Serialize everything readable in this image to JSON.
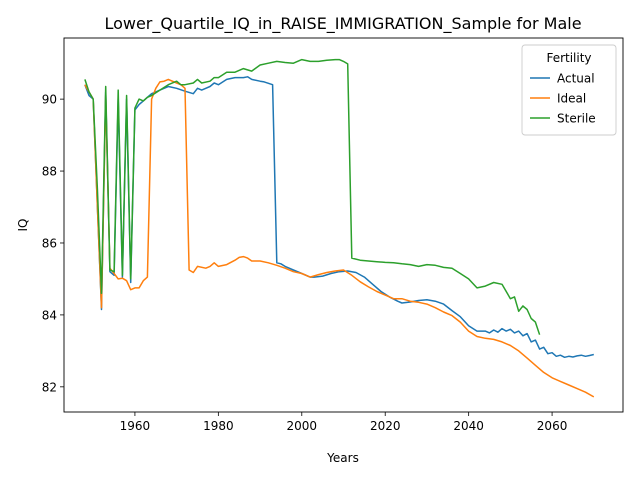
{
  "chart_data": {
    "type": "line",
    "title": "Lower_Quartile_IQ_in_RAISE_IMMIGRATION_Sample for Male",
    "xlabel": "Years",
    "ylabel": "IQ",
    "xlim": [
      1943,
      2077
    ],
    "ylim": [
      81.3,
      91.7
    ],
    "xticks": [
      1960,
      1980,
      2000,
      2020,
      2040,
      2060
    ],
    "yticks": [
      82,
      84,
      86,
      88,
      90
    ],
    "grid": false,
    "legend": {
      "title": "Fertility",
      "placement": "top-right"
    },
    "series": [
      {
        "name": "Actual",
        "color": "#1f77b4",
        "x": [
          1948,
          1949,
          1950,
          1951,
          1952,
          1953,
          1954,
          1955,
          1956,
          1957,
          1958,
          1959,
          1960,
          1961,
          1962,
          1963,
          1964,
          1965,
          1966,
          1967,
          1968,
          1970,
          1972,
          1974,
          1975,
          1976,
          1977,
          1978,
          1979,
          1980,
          1982,
          1984,
          1986,
          1987,
          1988,
          1990,
          1991,
          1993,
          1994,
          1995,
          1996,
          1998,
          2000,
          2002,
          2003,
          2005,
          2007,
          2009,
          2011,
          2013,
          2015,
          2017,
          2019,
          2021,
          2023,
          2024,
          2026,
          2028,
          2030,
          2032,
          2034,
          2036,
          2038,
          2040,
          2042,
          2044,
          2045,
          2046,
          2047,
          2048,
          2049,
          2050,
          2051,
          2052,
          2053,
          2054,
          2055,
          2056,
          2057,
          2058,
          2059,
          2060,
          2061,
          2062,
          2063,
          2064,
          2065,
          2066,
          2067,
          2068,
          2069,
          2070
        ],
        "y": [
          90.4,
          90.1,
          90.0,
          87.0,
          84.15,
          90.2,
          85.2,
          85.1,
          90.0,
          85.05,
          90.0,
          84.9,
          89.7,
          89.85,
          89.95,
          90.05,
          90.15,
          90.2,
          90.25,
          90.3,
          90.35,
          90.3,
          90.22,
          90.15,
          90.3,
          90.25,
          90.3,
          90.35,
          90.45,
          90.4,
          90.55,
          90.6,
          90.6,
          90.62,
          90.55,
          90.5,
          90.48,
          90.4,
          85.45,
          85.42,
          85.35,
          85.25,
          85.15,
          85.05,
          85.05,
          85.08,
          85.15,
          85.2,
          85.22,
          85.18,
          85.05,
          84.85,
          84.65,
          84.5,
          84.38,
          84.33,
          84.36,
          84.4,
          84.42,
          84.38,
          84.3,
          84.12,
          83.95,
          83.7,
          83.55,
          83.55,
          83.5,
          83.58,
          83.52,
          83.62,
          83.55,
          83.6,
          83.5,
          83.55,
          83.42,
          83.48,
          83.25,
          83.3,
          83.05,
          83.1,
          82.92,
          82.95,
          82.85,
          82.88,
          82.82,
          82.85,
          82.83,
          82.86,
          82.88,
          82.85,
          82.87,
          82.9
        ]
      },
      {
        "name": "Ideal",
        "color": "#ff7f0e",
        "x": [
          1948,
          1949,
          1950,
          1951,
          1952,
          1953,
          1954,
          1955,
          1956,
          1957,
          1958,
          1959,
          1960,
          1961,
          1962,
          1963,
          1964,
          1965,
          1966,
          1967,
          1968,
          1970,
          1971,
          1972,
          1973,
          1974,
          1975,
          1977,
          1978,
          1979,
          1980,
          1982,
          1984,
          1985,
          1986,
          1987,
          1988,
          1990,
          1992,
          1994,
          1996,
          1998,
          2000,
          2002,
          2004,
          2006,
          2008,
          2010,
          2012,
          2014,
          2016,
          2018,
          2020,
          2022,
          2024,
          2026,
          2028,
          2030,
          2032,
          2034,
          2036,
          2038,
          2040,
          2042,
          2044,
          2046,
          2048,
          2050,
          2052,
          2054,
          2056,
          2058,
          2060,
          2062,
          2064,
          2066,
          2068,
          2070
        ],
        "y": [
          90.4,
          90.2,
          90.0,
          87.0,
          84.2,
          90.1,
          85.3,
          85.15,
          85.0,
          85.02,
          84.95,
          84.7,
          84.75,
          84.75,
          84.95,
          85.05,
          90.0,
          90.3,
          90.48,
          90.5,
          90.55,
          90.45,
          90.4,
          90.3,
          85.25,
          85.18,
          85.35,
          85.3,
          85.35,
          85.45,
          85.35,
          85.4,
          85.52,
          85.6,
          85.62,
          85.58,
          85.5,
          85.5,
          85.45,
          85.38,
          85.3,
          85.2,
          85.15,
          85.05,
          85.12,
          85.18,
          85.22,
          85.25,
          85.1,
          84.92,
          84.78,
          84.65,
          84.55,
          84.45,
          84.45,
          84.38,
          84.35,
          84.3,
          84.2,
          84.08,
          83.98,
          83.8,
          83.55,
          83.4,
          83.35,
          83.32,
          83.25,
          83.15,
          83.0,
          82.8,
          82.6,
          82.4,
          82.25,
          82.15,
          82.05,
          81.95,
          81.85,
          81.72
        ]
      },
      {
        "name": "Sterile",
        "color": "#2ca02c",
        "x": [
          1948,
          1949,
          1950,
          1951,
          1952,
          1953,
          1954,
          1955,
          1956,
          1957,
          1958,
          1959,
          1960,
          1961,
          1962,
          1963,
          1964,
          1966,
          1968,
          1970,
          1971,
          1972,
          1974,
          1975,
          1976,
          1978,
          1979,
          1980,
          1982,
          1984,
          1986,
          1988,
          1990,
          1992,
          1994,
          1996,
          1998,
          2000,
          2002,
          2004,
          2006,
          2008,
          2009,
          2010,
          2011,
          2012,
          2014,
          2016,
          2018,
          2020,
          2022,
          2024,
          2026,
          2028,
          2030,
          2032,
          2034,
          2036,
          2038,
          2040,
          2042,
          2044,
          2046,
          2048,
          2050,
          2051,
          2052,
          2053,
          2054,
          2055,
          2056,
          2057
        ],
        "y": [
          90.55,
          90.2,
          90.0,
          87.5,
          84.6,
          90.35,
          85.25,
          85.2,
          90.25,
          85.1,
          90.1,
          85.0,
          89.75,
          90.0,
          89.95,
          90.05,
          90.1,
          90.25,
          90.4,
          90.5,
          90.4,
          90.4,
          90.45,
          90.55,
          90.45,
          90.5,
          90.6,
          90.6,
          90.75,
          90.75,
          90.85,
          90.78,
          90.95,
          91.0,
          91.05,
          91.02,
          91.0,
          91.1,
          91.05,
          91.05,
          91.08,
          91.1,
          91.1,
          91.05,
          90.98,
          85.58,
          85.52,
          85.5,
          85.48,
          85.46,
          85.45,
          85.42,
          85.4,
          85.35,
          85.4,
          85.38,
          85.32,
          85.3,
          85.15,
          85.0,
          84.75,
          84.8,
          84.9,
          84.85,
          84.45,
          84.5,
          84.1,
          84.25,
          84.15,
          83.9,
          83.8,
          83.45
        ]
      }
    ]
  }
}
